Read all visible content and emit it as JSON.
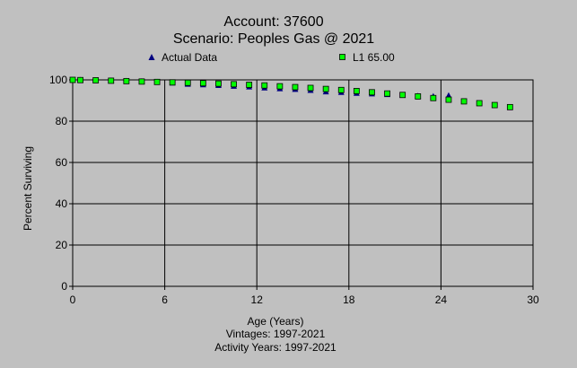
{
  "chart_data": {
    "type": "scatter",
    "title": "Account: 37600",
    "subtitle": "Scenario: Peoples Gas @ 2021",
    "xlabel": "Age (Years)",
    "ylabel": "Percent Surviving",
    "xlim": [
      0,
      30
    ],
    "ylim": [
      0,
      100
    ],
    "x_ticks": [
      0,
      6,
      12,
      18,
      24,
      30
    ],
    "y_ticks": [
      0,
      20,
      40,
      60,
      80,
      100
    ],
    "grid": true,
    "legend_position": "top",
    "footer_lines": [
      "Vintages: 1997-2021",
      "Activity Years: 1997-2021"
    ],
    "series": [
      {
        "name": "Actual Data",
        "marker": "triangle",
        "color": "#000080",
        "x": [
          0,
          0.5,
          1.5,
          2.5,
          3.5,
          4.5,
          5.5,
          6.5,
          7.5,
          8.5,
          9.5,
          10.5,
          11.5,
          12.5,
          13.5,
          14.5,
          15.5,
          16.5,
          17.5,
          18.5,
          19.5,
          20.5,
          21.5,
          22.5,
          23.5,
          24.5
        ],
        "y": [
          100,
          100,
          99.8,
          99.7,
          99.5,
          99.3,
          99.0,
          98.6,
          98.0,
          97.7,
          97.4,
          97.0,
          96.7,
          96.2,
          95.8,
          95.5,
          95.0,
          94.3,
          94.0,
          93.6,
          93.3,
          93.0,
          92.6,
          92.3,
          92.1,
          92.5
        ]
      },
      {
        "name": "L1 65.00",
        "marker": "square",
        "color": "#00ff00",
        "x": [
          0,
          0.5,
          1.5,
          2.5,
          3.5,
          4.5,
          5.5,
          6.5,
          7.5,
          8.5,
          9.5,
          10.5,
          11.5,
          12.5,
          13.5,
          14.5,
          15.5,
          16.5,
          17.5,
          18.5,
          19.5,
          20.5,
          21.5,
          22.5,
          23.5,
          24.5,
          25.5,
          26.5,
          27.5,
          28.5
        ],
        "y": [
          100,
          99.9,
          99.8,
          99.6,
          99.4,
          99.2,
          99.0,
          98.8,
          98.6,
          98.4,
          98.2,
          97.9,
          97.6,
          97.3,
          96.9,
          96.5,
          96.1,
          95.6,
          95.1,
          94.6,
          94.0,
          93.4,
          92.7,
          92.0,
          91.2,
          90.4,
          89.6,
          88.7,
          87.8,
          86.8
        ]
      }
    ]
  }
}
